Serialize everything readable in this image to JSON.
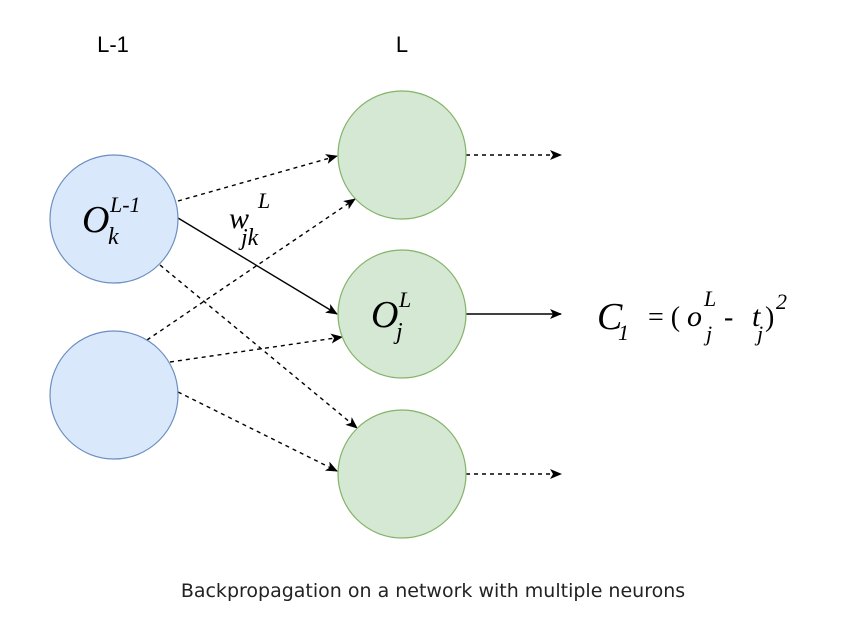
{
  "layers": {
    "previous_label": "L-1",
    "current_label": "L"
  },
  "neuron_input_top": {
    "symbol": "O",
    "superscript": "L-1",
    "subscript": "k"
  },
  "neuron_output_middle": {
    "symbol": "O",
    "superscript": "L",
    "subscript": "j"
  },
  "weight": {
    "symbol": "w",
    "superscript": "L",
    "subscript": "jk"
  },
  "cost": {
    "symbol": "C",
    "subscript": "1",
    "equals": "= (",
    "o_symbol": "o",
    "o_superscript": "L",
    "o_subscript": "j",
    "minus": "-",
    "t_symbol": "t",
    "t_subscript": "j",
    "close": ")",
    "exponent": "2"
  },
  "caption": "Backpropagation on a network with multiple neurons",
  "colors": {
    "input_fill": "#dae8fc",
    "input_stroke": "#6c8ebf",
    "output_fill": "#d5e8d4",
    "output_stroke": "#82b366",
    "line": "#000000"
  }
}
